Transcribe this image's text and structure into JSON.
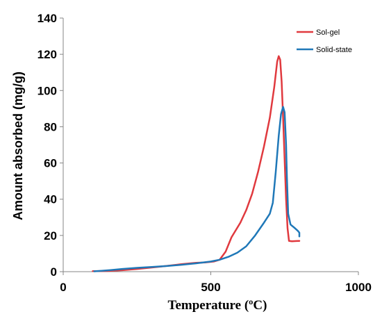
{
  "chart_data": {
    "type": "line",
    "title": "",
    "xlabel": "Temperature (ºC)",
    "ylabel": "Amount absorbed (mg/g)",
    "xlim": [
      0,
      1000
    ],
    "ylim": [
      0,
      140
    ],
    "x_ticks": [
      "0",
      "500",
      "1000"
    ],
    "y_ticks": [
      "0",
      "20",
      "40",
      "60",
      "80",
      "100",
      "120",
      "140"
    ],
    "grid": false,
    "legend_position": "top-right",
    "series": [
      {
        "name": "Sol-gel",
        "color": "#e0393e",
        "points": [
          [
            100,
            0.3
          ],
          [
            150,
            0.4
          ],
          [
            200,
            0.8
          ],
          [
            250,
            1.5
          ],
          [
            300,
            2.3
          ],
          [
            350,
            3.2
          ],
          [
            400,
            4.1
          ],
          [
            450,
            4.9
          ],
          [
            480,
            5.1
          ],
          [
            510,
            5.6
          ],
          [
            530,
            6.6
          ],
          [
            550,
            11
          ],
          [
            570,
            19
          ],
          [
            600,
            27
          ],
          [
            620,
            34
          ],
          [
            640,
            43
          ],
          [
            660,
            55
          ],
          [
            680,
            69
          ],
          [
            700,
            85
          ],
          [
            715,
            102
          ],
          [
            725,
            116
          ],
          [
            730,
            119
          ],
          [
            735,
            117
          ],
          [
            740,
            105
          ],
          [
            745,
            85
          ],
          [
            750,
            62
          ],
          [
            755,
            40
          ],
          [
            760,
            24
          ],
          [
            765,
            17
          ],
          [
            775,
            16.8
          ],
          [
            790,
            16.9
          ],
          [
            800,
            17
          ]
        ]
      },
      {
        "name": "Solid-state",
        "color": "#1f78b8",
        "points": [
          [
            105,
            0.2
          ],
          [
            130,
            0.5
          ],
          [
            160,
            0.9
          ],
          [
            200,
            1.5
          ],
          [
            250,
            2.1
          ],
          [
            300,
            2.6
          ],
          [
            350,
            3.1
          ],
          [
            400,
            3.8
          ],
          [
            450,
            4.6
          ],
          [
            500,
            5.6
          ],
          [
            530,
            6.6
          ],
          [
            560,
            8.2
          ],
          [
            590,
            10.5
          ],
          [
            620,
            14
          ],
          [
            650,
            20
          ],
          [
            680,
            27
          ],
          [
            700,
            32
          ],
          [
            710,
            38
          ],
          [
            720,
            55
          ],
          [
            730,
            75
          ],
          [
            738,
            87
          ],
          [
            745,
            91
          ],
          [
            750,
            88
          ],
          [
            755,
            70
          ],
          [
            758,
            52
          ],
          [
            762,
            32
          ],
          [
            770,
            26
          ],
          [
            785,
            24
          ],
          [
            795,
            22.5
          ],
          [
            800,
            21.5
          ],
          [
            800,
            19.5
          ]
        ]
      }
    ]
  }
}
